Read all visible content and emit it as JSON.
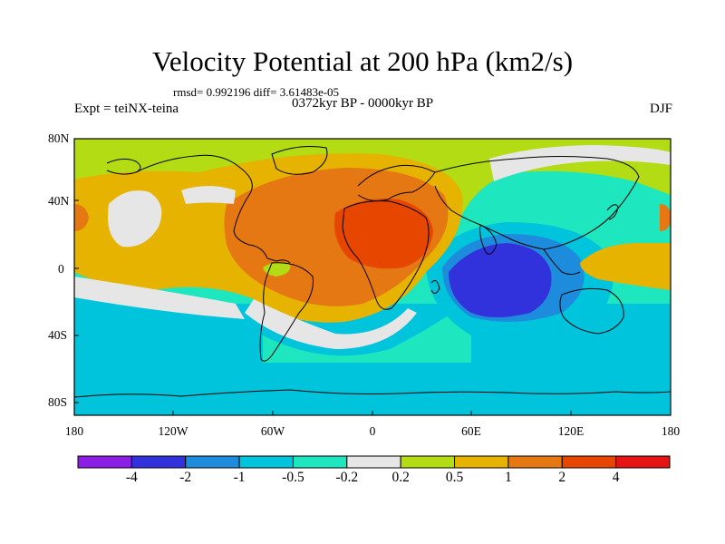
{
  "title": "Velocity Potential at 200 hPa (km2/s)",
  "stats": "rmsd= 0.992196 diff= 3.61483e-05",
  "experiment": "Expt = teiNX-teina",
  "period": "0372kyr BP - 0000kyr BP",
  "season": "DJF",
  "lat_labels": [
    "80N",
    "40N",
    "0",
    "40S",
    "80S"
  ],
  "lon_labels": [
    "180",
    "120W",
    "60W",
    "0",
    "60E",
    "120E",
    "180"
  ],
  "colorbar": {
    "labels": [
      "-4",
      "-2",
      "-1",
      "-0.5",
      "-0.2",
      "0.2",
      "0.5",
      "1",
      "2",
      "4"
    ],
    "colors": [
      "#8c1ee6",
      "#3232dc",
      "#1e8cdc",
      "#00c3dc",
      "#1ee6be",
      "#e6e6e6",
      "#b4dc14",
      "#e6b400",
      "#e67814",
      "#e64600",
      "#e61414"
    ]
  }
}
